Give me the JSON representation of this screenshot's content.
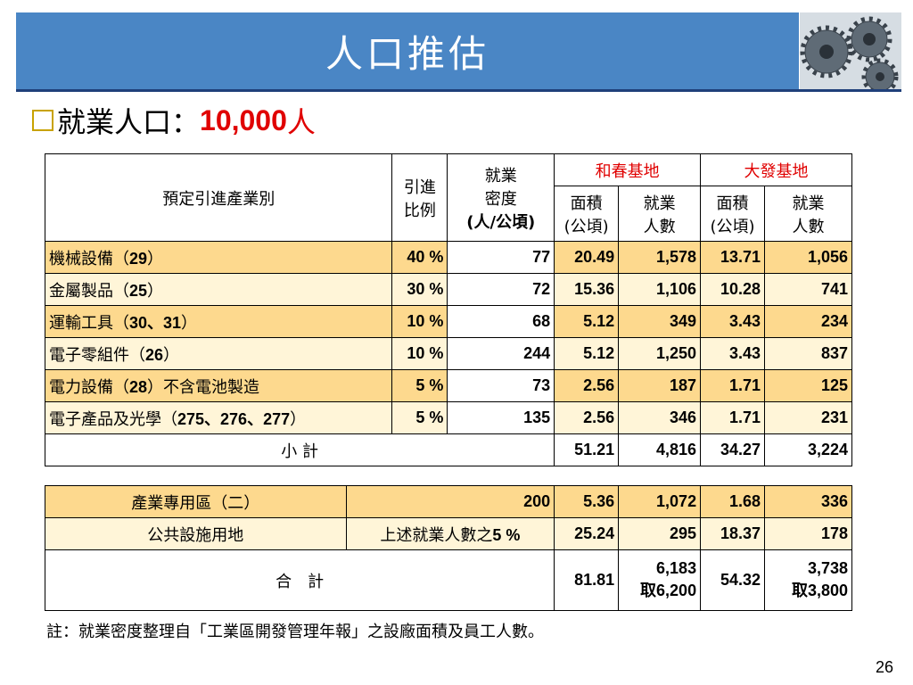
{
  "title": "人口推估",
  "subtitle": {
    "label": "就業人口：",
    "value": "10,000",
    "unit": "人"
  },
  "table1": {
    "header": {
      "industry": "預定引進產業別",
      "ratio": [
        "引進",
        "比例"
      ],
      "density": [
        "就業",
        "密度",
        "(人/公頃)"
      ],
      "site_a": "和春基地",
      "site_b": "大發基地",
      "area": [
        "面積",
        "(公頃)"
      ],
      "workers": [
        "就業",
        "人數"
      ]
    },
    "rows": [
      {
        "name": "機械設備（",
        "code": "29",
        "end": "）",
        "ratio": "40 %",
        "density": "77",
        "a_area": "20.49",
        "a_workers": "1,578",
        "b_area": "13.71",
        "b_workers": "1,056"
      },
      {
        "name": "金屬製品（",
        "code": "25",
        "end": "）",
        "ratio": "30 %",
        "density": "72",
        "a_area": "15.36",
        "a_workers": "1,106",
        "b_area": "10.28",
        "b_workers": "741"
      },
      {
        "name": "運輸工具（",
        "code": "30、31",
        "end": "）",
        "ratio": "10 %",
        "density": "68",
        "a_area": "5.12",
        "a_workers": "349",
        "b_area": "3.43",
        "b_workers": "234"
      },
      {
        "name": "電子零組件（",
        "code": "26",
        "end": "）",
        "ratio": "10 %",
        "density": "244",
        "a_area": "5.12",
        "a_workers": "1,250",
        "b_area": "3.43",
        "b_workers": "837"
      },
      {
        "name": "電力設備（",
        "code": "28",
        "end": "）不含電池製造",
        "ratio": "5 %",
        "density": "73",
        "a_area": "2.56",
        "a_workers": "187",
        "b_area": "1.71",
        "b_workers": "125"
      },
      {
        "name": "電子產品及光學（",
        "code": "275、276、277",
        "end": "）",
        "ratio": "5 %",
        "density": "135",
        "a_area": "2.56",
        "a_workers": "346",
        "b_area": "1.71",
        "b_workers": "231"
      }
    ],
    "subtotal": {
      "label": "小 計",
      "a_area": "51.21",
      "a_workers": "4,816",
      "b_area": "34.27",
      "b_workers": "3,224"
    }
  },
  "table2": {
    "rows": [
      {
        "name": "產業專用區（二）",
        "mid_prefix": "",
        "mid_value": "200",
        "mid_suffix": "",
        "a_area": "5.36",
        "a_workers": "1,072",
        "b_area": "1.68",
        "b_workers": "336"
      },
      {
        "name": "公共設施用地",
        "mid_prefix": "上述就業人數之",
        "mid_value": "5 %",
        "mid_suffix": "",
        "a_area": "25.24",
        "a_workers": "295",
        "b_area": "18.37",
        "b_workers": "178"
      }
    ],
    "total": {
      "label": "合　計",
      "a_area": "81.81",
      "a_workers": "6,183",
      "a_workers_take": "取6,200",
      "b_area": "54.32",
      "b_workers": "3,738",
      "b_workers_take": "取3,800"
    }
  },
  "note": "註：就業密度整理自「工業區開發管理年報」之設廠面積及員工人數。",
  "page_number": "26",
  "colors": {
    "title_bar": "#4a86c5",
    "accent_red": "#e00000",
    "row_fill_dark": "#fdd98e",
    "row_fill_light": "#fff5d8"
  }
}
